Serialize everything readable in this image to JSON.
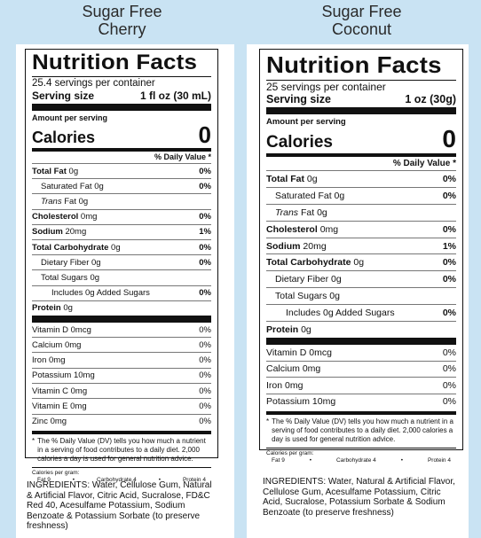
{
  "cherry": {
    "title": "Sugar Free\nCherry",
    "nf_title": "Nutrition Facts",
    "servings": "25.4 servings per container",
    "serving_size_label": "Serving size",
    "serving_size_value": "1 fl oz (30 mL)",
    "amount_per_serving": "Amount per serving",
    "calories_label": "Calories",
    "calories_value": "0",
    "dv_header": "% Daily Value *",
    "nutrients": [
      {
        "name": "Total Fat",
        "amount": "0g",
        "dv": "0%"
      },
      {
        "name": "Saturated Fat",
        "amount": "0g",
        "dv": "0%"
      },
      {
        "name": "Trans",
        "amount": "Fat 0g",
        "dv": ""
      },
      {
        "name": "Cholesterol",
        "amount": "0mg",
        "dv": "0%"
      },
      {
        "name": "Sodium",
        "amount": "20mg",
        "dv": "1%"
      },
      {
        "name": "Total Carbohydrate",
        "amount": "0g",
        "dv": "0%"
      },
      {
        "name": "Dietary Fiber",
        "amount": "0g",
        "dv": "0%"
      },
      {
        "name": "Total Sugars",
        "amount": "0g",
        "dv": ""
      },
      {
        "name": "Includes 0g Added Sugars",
        "amount": "",
        "dv": "0%"
      },
      {
        "name": "Protein",
        "amount": "0g",
        "dv": ""
      }
    ],
    "vitamins": [
      {
        "name": "Vitamin D 0mcg",
        "dv": "0%"
      },
      {
        "name": "Calcium 0mg",
        "dv": "0%"
      },
      {
        "name": "Iron 0mg",
        "dv": "0%"
      },
      {
        "name": "Potassium 10mg",
        "dv": "0%"
      },
      {
        "name": "Vitamin C 0mg",
        "dv": "0%"
      },
      {
        "name": "Vitamin E 0mg",
        "dv": "0%"
      },
      {
        "name": "Zinc 0mg",
        "dv": "0%"
      }
    ],
    "footnote_star": "*",
    "footnote": "The % Daily Value (DV) tells you how much a nutrient in a serving of food contributes to a daily diet. 2,000 calories a day is used for general nutrition advice.",
    "cal_per_gram": "Calories per gram:",
    "cpg_fat": "Fat 9",
    "cpg_dot": "•",
    "cpg_carb": "Carbohydrate 4",
    "cpg_protein": "Protein 4",
    "ingredients": "INGREDIENTS: Water, Cellulose Gum, Natural & Artificial Flavor, Citric Acid, Sucralose, FD&C Red 40, Acesulfame Potassium, Sodium Benzoate & Potassium Sorbate (to preserve freshness)"
  },
  "coconut": {
    "title": "Sugar Free\nCoconut",
    "nf_title": "Nutrition Facts",
    "servings": "25 servings per container",
    "serving_size_label": "Serving size",
    "serving_size_value": "1 oz (30g)",
    "amount_per_serving": "Amount per serving",
    "calories_label": "Calories",
    "calories_value": "0",
    "dv_header": "% Daily Value *",
    "nutrients": [
      {
        "name": "Total Fat",
        "amount": "0g",
        "dv": "0%"
      },
      {
        "name": "Saturated Fat",
        "amount": "0g",
        "dv": "0%"
      },
      {
        "name": "Trans",
        "amount": "Fat 0g",
        "dv": ""
      },
      {
        "name": "Cholesterol",
        "amount": "0mg",
        "dv": "0%"
      },
      {
        "name": "Sodium",
        "amount": "20mg",
        "dv": "1%"
      },
      {
        "name": "Total Carbohydrate",
        "amount": "0g",
        "dv": "0%"
      },
      {
        "name": "Dietary Fiber",
        "amount": "0g",
        "dv": "0%"
      },
      {
        "name": "Total Sugars",
        "amount": "0g",
        "dv": ""
      },
      {
        "name": "Includes 0g Added Sugars",
        "amount": "",
        "dv": "0%"
      },
      {
        "name": "Protein",
        "amount": "0g",
        "dv": ""
      }
    ],
    "vitamins": [
      {
        "name": "Vitamin D 0mcg",
        "dv": "0%"
      },
      {
        "name": "Calcium 0mg",
        "dv": "0%"
      },
      {
        "name": "Iron 0mg",
        "dv": "0%"
      },
      {
        "name": "Potassium 10mg",
        "dv": "0%"
      }
    ],
    "footnote_star": "*",
    "footnote": "The % Daily Value (DV) tells you how much a nutrient in a serving of food contributes to a daily diet. 2,000 calories a day is used for general nutrition advice.",
    "cal_per_gram": "Calories per gram:",
    "cpg_fat": "Fat 9",
    "cpg_dot": "•",
    "cpg_carb": "Carbohydrate 4",
    "cpg_protein": "Protein 4",
    "ingredients": "INGREDIENTS: Water, Natural & Artificial Flavor, Cellulose Gum, Acesulfame Potassium, Citric Acid, Sucralose, Potassium Sorbate & Sodium Benzoate (to preserve freshness)"
  }
}
